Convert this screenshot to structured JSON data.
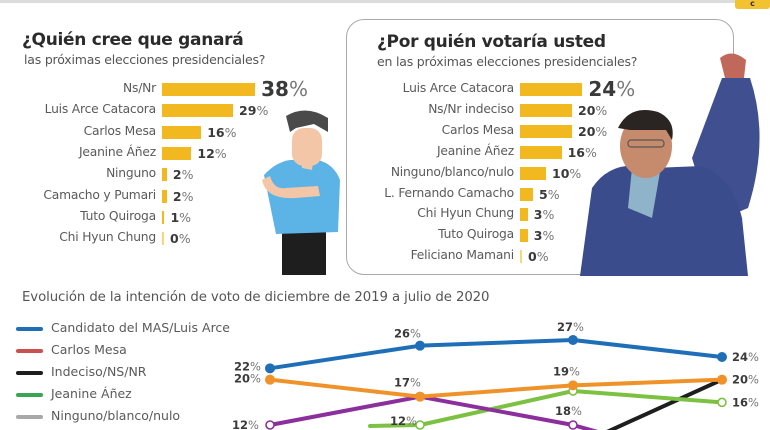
{
  "header": {
    "logo_text": "ᴄ"
  },
  "chart_data": [
    {
      "type": "bar",
      "orientation": "horizontal",
      "title": "¿Quién cree que ganará",
      "subtitle": "las próximas elecciones presidenciales?",
      "categories": [
        "Ns/Nr",
        "Luis Arce Catacora",
        "Carlos Mesa",
        "Jeanine Áñez",
        "Ninguno",
        "Camacho y Pumari",
        "Tuto Quiroga",
        "Chi Hyun Chung"
      ],
      "values": [
        38,
        29,
        16,
        12,
        2,
        2,
        1,
        0
      ],
      "unit": "%",
      "bar_color": "#f1b820"
    },
    {
      "type": "bar",
      "orientation": "horizontal",
      "title": "¿Por quién votaría usted",
      "subtitle": "en las próximas elecciones presidenciales?",
      "categories": [
        "Luis Arce Catacora",
        "Ns/Nr indeciso",
        "Carlos Mesa",
        "Jeanine Áñez",
        "Ninguno/blanco/nulo",
        "L. Fernando Camacho",
        "Chi Hyun Chung",
        "Tuto Quiroga",
        "Feliciano Mamani"
      ],
      "values": [
        24,
        20,
        20,
        16,
        10,
        5,
        3,
        3,
        0
      ],
      "unit": "%",
      "bar_color": "#f1b820"
    },
    {
      "type": "line",
      "title": "Evolución de la intención de voto de diciembre de 2019 a julio de 2020",
      "x_points": 4,
      "legend": [
        {
          "name": "Candidato del MAS/Luis Arce",
          "color": "#1f6fb8"
        },
        {
          "name": "Carlos Mesa",
          "color": "#c9514f"
        },
        {
          "name": "Indeciso/NS/NR",
          "color": "#1e1e1e"
        },
        {
          "name": "Jeanine Áñez",
          "color": "#3aa655"
        },
        {
          "name": "Ninguno/blanco/nulo",
          "color": "#a8a8a8"
        }
      ],
      "series": [
        {
          "name": "Candidato del MAS/Luis Arce",
          "color": "#1f6fb8",
          "values": [
            22,
            26,
            27,
            24
          ],
          "labels": [
            "22%",
            "26%",
            "27%",
            "24%"
          ],
          "marker": "filled"
        },
        {
          "name": "Orange series",
          "color": "#f0922a",
          "values": [
            20,
            17,
            19,
            20
          ],
          "labels": [
            "20%",
            "17%",
            "19%",
            "20%"
          ],
          "marker": "filled"
        },
        {
          "name": "Purple series",
          "color": "#8b2f9c",
          "values": [
            12,
            17,
            12,
            null
          ],
          "labels": [
            "12%",
            "",
            "",
            ""
          ],
          "marker": "hollow"
        },
        {
          "name": "Green series",
          "color": "#7cc142",
          "values": [
            null,
            12,
            18,
            16
          ],
          "labels": [
            "",
            "12%",
            "18%",
            "16%"
          ],
          "marker": "hollow"
        },
        {
          "name": "Black series",
          "color": "#1e1e1e",
          "values": [
            null,
            null,
            10,
            20
          ],
          "labels": [
            "",
            "",
            "",
            ""
          ],
          "marker": "none"
        }
      ],
      "ylim": [
        10,
        28
      ]
    }
  ]
}
